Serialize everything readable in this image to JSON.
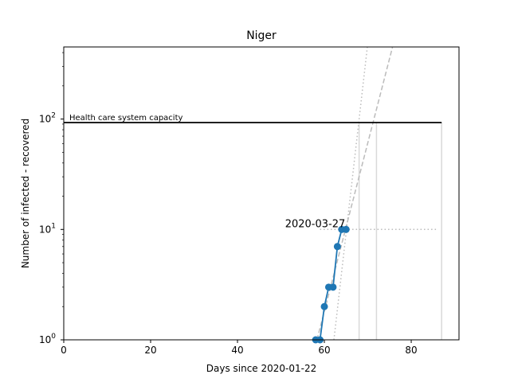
{
  "chart_data": {
    "type": "line",
    "title": "Niger",
    "xlabel": "Days since 2020-01-22",
    "ylabel": "Number of infected - recovered",
    "x_scale": "linear",
    "y_scale": "log",
    "xlim": [
      0,
      91
    ],
    "ylim": [
      1,
      450
    ],
    "x_ticks": [
      0,
      20,
      40,
      60,
      80
    ],
    "x_tick_labels": [
      "0",
      "20",
      "40",
      "60",
      "80"
    ],
    "y_ticks": [
      1,
      10,
      100
    ],
    "y_tick_labels": [
      "10^0",
      "10^1",
      "10^2"
    ],
    "grid": false,
    "series": [
      {
        "x": [
          58,
          59,
          60,
          61,
          62,
          63,
          64,
          65
        ],
        "y": [
          1,
          1,
          2,
          3,
          3,
          7,
          10,
          10
        ],
        "color": "#1f77b4"
      }
    ],
    "capacity": {
      "label": "Health care system capacity",
      "y": 93,
      "x_range": [
        0,
        87
      ],
      "color": "#000000"
    },
    "projections": [
      {
        "style": "dashed",
        "color": "#bbbbbb",
        "x": [
          58.3,
          75.7
        ],
        "y": [
          1,
          450
        ]
      },
      {
        "style": "dotted",
        "color": "#bbbbbb",
        "x": [
          62.2,
          69.9
        ],
        "y": [
          1,
          450
        ]
      }
    ],
    "reference_lines": {
      "color": "#d9d9d9",
      "vertical_x": [
        68,
        72,
        87
      ],
      "horizontal_dotted": {
        "y": 10,
        "x_range": [
          59,
          86
        ]
      }
    },
    "annotation": {
      "text": "2020-03-27",
      "x": 65,
      "y": 10
    }
  }
}
